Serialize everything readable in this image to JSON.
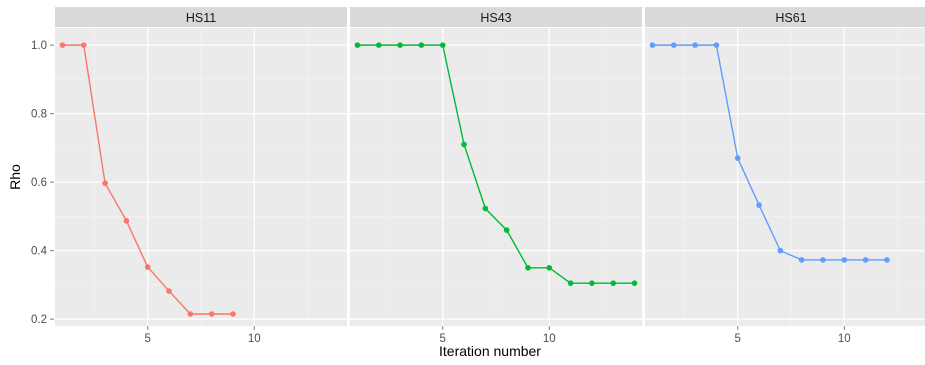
{
  "chart_data": {
    "type": "line",
    "layout": "faceted",
    "xlabel": "Iteration number",
    "ylabel": "Rho",
    "ylim": [
      0.18,
      1.05
    ],
    "yticks": [
      0.2,
      0.4,
      0.6,
      0.8,
      1.0
    ],
    "ytick_labels": [
      "0.2",
      "0.4",
      "0.6",
      "0.8",
      "1.0"
    ],
    "grid": true,
    "legend": "none",
    "facets": [
      {
        "title": "HS11",
        "color": "#F8766D",
        "xlim": [
          0.65,
          14.35
        ],
        "xticks": [
          5,
          10
        ],
        "xtick_labels": [
          "5",
          "10"
        ],
        "x": [
          1,
          2,
          3,
          4,
          5,
          6,
          7,
          8,
          9
        ],
        "y": [
          1.0,
          1.0,
          0.597,
          0.487,
          0.352,
          0.282,
          0.215,
          0.215,
          0.215
        ]
      },
      {
        "title": "HS43",
        "color": "#00BA38",
        "xlim": [
          0.65,
          14.35
        ],
        "xticks": [
          5,
          10
        ],
        "xtick_labels": [
          "5",
          "10"
        ],
        "x": [
          1,
          2,
          3,
          4,
          5,
          6,
          7,
          8,
          9,
          10,
          11,
          12,
          13,
          14
        ],
        "y": [
          1.0,
          1.0,
          1.0,
          1.0,
          1.0,
          0.71,
          0.523,
          0.46,
          0.35,
          0.35,
          0.305,
          0.305,
          0.305,
          0.305
        ]
      },
      {
        "title": "HS61",
        "color": "#619CFF",
        "xlim": [
          0.65,
          14.35
        ],
        "xticks": [
          5,
          10
        ],
        "xtick_labels": [
          "5",
          "10"
        ],
        "x": [
          1,
          2,
          3,
          4,
          5,
          6,
          7,
          8,
          9,
          10,
          11,
          12
        ],
        "y": [
          1.0,
          1.0,
          1.0,
          1.0,
          0.67,
          0.533,
          0.4,
          0.373,
          0.373,
          0.373,
          0.373,
          0.373
        ]
      }
    ]
  }
}
